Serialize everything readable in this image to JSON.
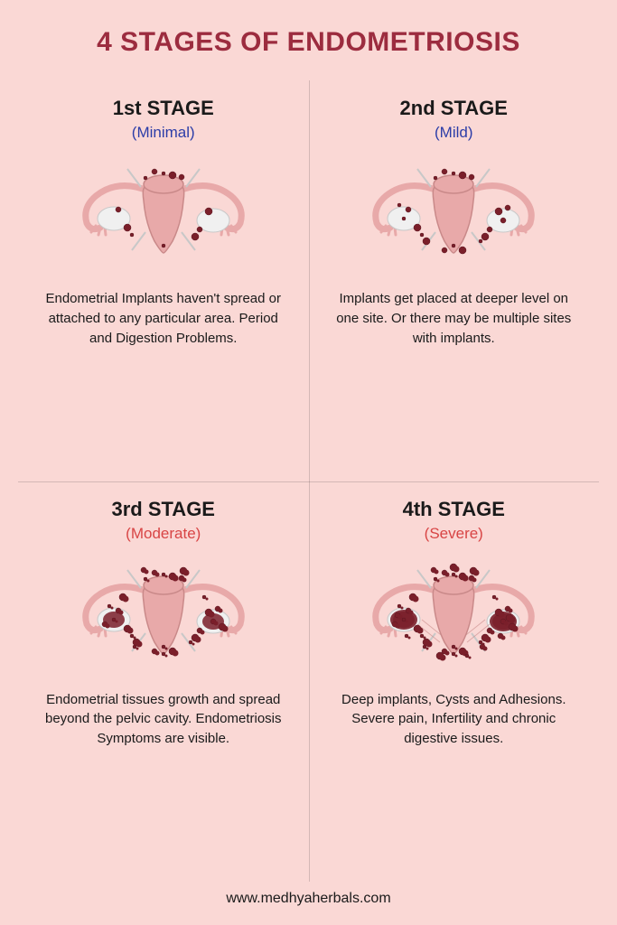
{
  "title": "4 STAGES OF ENDOMETRIOSIS",
  "title_color": "#9c2c3f",
  "background_color": "#fad8d5",
  "divider_color": "rgba(0,0,0,0.15)",
  "footer": "www.medhyaherbals.com",
  "illustration": {
    "uterus_fill": "#e8a9a9",
    "uterus_stroke": "#c98989",
    "ovary_fill": "#f0f0f0",
    "ovary_stroke": "#c8c8c8",
    "tube_fill": "#e8a9a9",
    "implant_fill": "#7a1f2a",
    "implant_stroke": "#5a1520"
  },
  "stages": [
    {
      "title": "1st STAGE",
      "subtitle": "(Minimal)",
      "subtitle_color": "#2c3da8",
      "description": "Endometrial Implants haven't spread or attached to any particular area.\nPeriod and Digestion Problems.",
      "implant_density": "low",
      "implant_count": 12
    },
    {
      "title": "2nd STAGE",
      "subtitle": "(Mild)",
      "subtitle_color": "#2c3da8",
      "description": "Implants get placed at deeper level on one site. Or there may be multiple sites with implants.",
      "implant_density": "medium",
      "implant_count": 20
    },
    {
      "title": "3rd STAGE",
      "subtitle": "(Moderate)",
      "subtitle_color": "#d84545",
      "description": "Endometrial tissues growth and spread beyond the pelvic cavity. Endometriosis Symptoms are visible.",
      "implant_density": "high",
      "implant_count": 28
    },
    {
      "title": "4th STAGE",
      "subtitle": "(Severe)",
      "subtitle_color": "#d84545",
      "description": "Deep implants, Cysts and Adhesions. Severe pain, Infertility and chronic digestive issues.",
      "implant_density": "severe",
      "implant_count": 36
    }
  ]
}
